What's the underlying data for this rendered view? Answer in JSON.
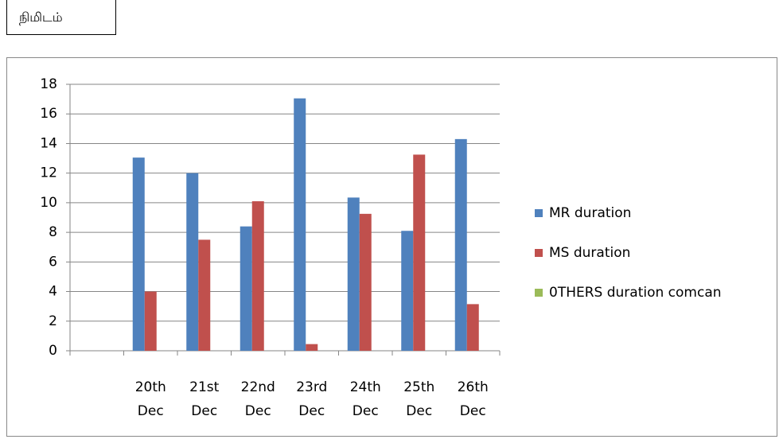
{
  "header": {
    "title": "நிமிடம்"
  },
  "chart_data": {
    "type": "bar",
    "categories": [
      null,
      "20th Dec",
      "21st Dec",
      "22nd Dec",
      "23rd Dec",
      "24th Dec",
      "25th Dec",
      "26th Dec"
    ],
    "series": [
      {
        "name": "MR duration",
        "color": "#4f81bd",
        "values": [
          null,
          13.05,
          12,
          8.4,
          17.05,
          10.35,
          8.1,
          14.3
        ]
      },
      {
        "name": "MS duration",
        "color": "#c0504d",
        "values": [
          null,
          4,
          7.5,
          10.1,
          0.45,
          9.25,
          13.25,
          3.15
        ]
      },
      {
        "name": "0THERS duration comcan",
        "color": "#9bbb59",
        "values": [
          null,
          0,
          0,
          0,
          0,
          0,
          0,
          0
        ]
      }
    ],
    "ylim": [
      0,
      18
    ],
    "yticks": [
      0,
      2,
      4,
      6,
      8,
      10,
      12,
      14,
      16,
      18
    ],
    "grid": true,
    "legend": "right"
  }
}
